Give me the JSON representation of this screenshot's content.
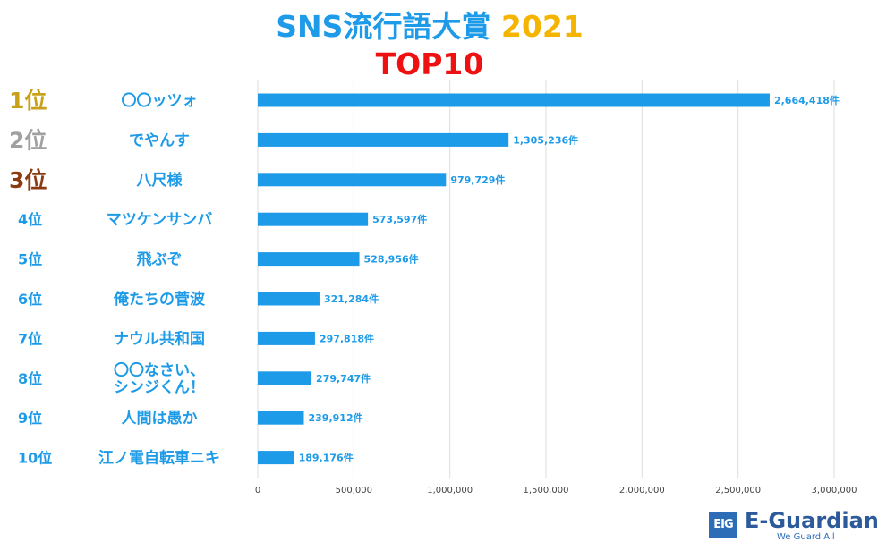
{
  "title": "SNS流行語大賞",
  "title_year": "2021",
  "subtitle": "TOP10",
  "colors": {
    "bar": "#1e9be8",
    "title": "#1e9be8",
    "year": "#f5b400",
    "subtitle": "#ee1111",
    "rank1": "#c8a11a",
    "rank2": "#a0a0a0",
    "rank3": "#8b3a12",
    "rank_other": "#1e9be8",
    "grid": "#dddddd"
  },
  "chart_data": {
    "type": "bar",
    "orientation": "horizontal",
    "categories": [
      {
        "rank": "1位",
        "label": [
          "〇〇ッツォ"
        ]
      },
      {
        "rank": "2位",
        "label": [
          "でやんす"
        ]
      },
      {
        "rank": "3位",
        "label": [
          "八尺様"
        ]
      },
      {
        "rank": "4位",
        "label": [
          "マツケンサンバ"
        ]
      },
      {
        "rank": "5位",
        "label": [
          "飛ぶぞ"
        ]
      },
      {
        "rank": "6位",
        "label": [
          "俺たちの菅波"
        ]
      },
      {
        "rank": "7位",
        "label": [
          "ナウル共和国"
        ]
      },
      {
        "rank": "8位",
        "label": [
          "〇〇なさい、",
          "シンジくん！"
        ]
      },
      {
        "rank": "9位",
        "label": [
          "人間は愚か"
        ]
      },
      {
        "rank": "10位",
        "label": [
          "江ノ電自転車ニキ"
        ]
      }
    ],
    "values": [
      2664418,
      1305236,
      979729,
      573597,
      528956,
      321284,
      297818,
      279747,
      239912,
      189176
    ],
    "value_labels": [
      "2,664,418件",
      "1,305,236件",
      "979,729件",
      "573,597件",
      "528,956件",
      "321,284件",
      "297,818件",
      "279,747件",
      "239,912件",
      "189,176件"
    ],
    "xlim": [
      0,
      3000000
    ],
    "xticks": [
      0,
      500000,
      1000000,
      1500000,
      2000000,
      2500000,
      3000000
    ],
    "xtick_labels": [
      "0",
      "500,000",
      "1,000,000",
      "1,500,000",
      "2,000,000",
      "2,500,000",
      "3,000,000"
    ],
    "grid": true
  },
  "logo": {
    "mark": "EIG",
    "name": "E-Guardian",
    "tagline": "We Guard All"
  }
}
